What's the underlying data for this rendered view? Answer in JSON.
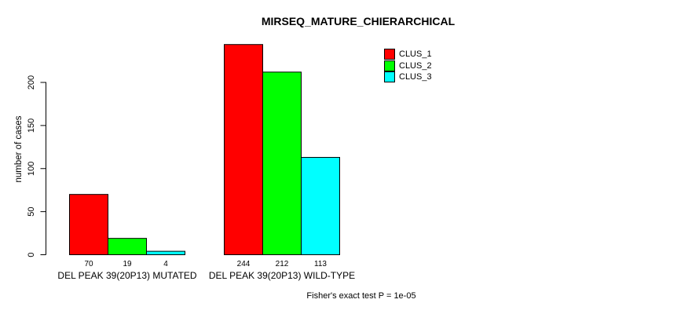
{
  "chart_data": {
    "type": "bar",
    "title": "MIRSEQ_MATURE_CHIERARCHICAL",
    "ylabel": "number of cases",
    "xlabel": "",
    "annotation": "Fisher's exact test P = 1e-05",
    "categories": [
      "DEL PEAK 39(20P13) MUTATED",
      "DEL PEAK 39(20P13) WILD-TYPE"
    ],
    "series": [
      {
        "name": "CLUS_1",
        "color": "#FF0000",
        "values": [
          70,
          244
        ]
      },
      {
        "name": "CLUS_2",
        "color": "#00FF00",
        "values": [
          19,
          212
        ]
      },
      {
        "name": "CLUS_3",
        "color": "#00FFFF",
        "values": [
          4,
          113
        ]
      }
    ],
    "yticks": [
      0,
      50,
      100,
      150,
      200
    ],
    "ylim": [
      0,
      250
    ],
    "grid": false,
    "show_value_labels": true,
    "legend_position": "top-right",
    "legend_box": false
  }
}
